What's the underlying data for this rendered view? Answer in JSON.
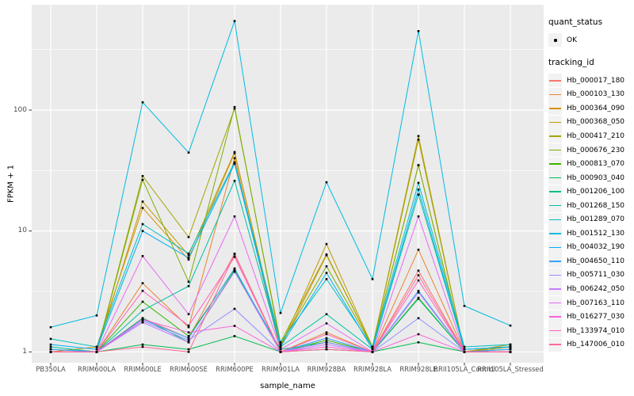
{
  "figure": {
    "x_axis_title": "sample_name",
    "y_axis_title": "FPKM + 1",
    "legend": {
      "quant_status_title": "quant_status",
      "quant_status_ok_label": "OK",
      "tracking_id_title": "tracking_id"
    },
    "colors": {
      "panel_background": "#EBEBEB",
      "grid": "#FFFFFF",
      "axis_text": "#4d4d4d",
      "tick_mark": "#333333",
      "legend_key_background": "#F2F2F2",
      "point": "#000000"
    }
  },
  "chart_data": {
    "type": "line",
    "title": "",
    "xlabel": "sample_name",
    "ylabel": "FPKM + 1",
    "y_scale": "log10",
    "ylim": [
      0.83,
      760
    ],
    "y_ticks": [
      1,
      10,
      100
    ],
    "y_minor_ticks": [
      3.162,
      31.62,
      316.2
    ],
    "grid": true,
    "legend_position": "right",
    "quant_status": "OK",
    "categories": [
      "PB350LA",
      "RRIM600LA",
      "RRIM600LE",
      "RRIM600SE",
      "RRIM600PE",
      "RRIM901LA",
      "RRIM928BA",
      "RRIM928LA",
      "RRIM928LE",
      "RRII105LA_Control",
      "RRII105LA_Stressed"
    ],
    "series": [
      {
        "name": "Hb_000017_180",
        "color": "#F8766D",
        "values": [
          1.0,
          1.0,
          1.9,
          1.3,
          6.5,
          1.0,
          1.2,
          1.0,
          4.7,
          1.0,
          1.0
        ]
      },
      {
        "name": "Hb_000103_130",
        "color": "#EA8331",
        "values": [
          1.0,
          1.0,
          3.7,
          1.6,
          40,
          1.0,
          1.45,
          1.0,
          7.0,
          1.0,
          1.1
        ]
      },
      {
        "name": "Hb_000364_090",
        "color": "#D89000",
        "values": [
          1.0,
          1.1,
          15.5,
          5.8,
          44,
          1.1,
          6.3,
          1.1,
          35,
          1.0,
          1.1
        ]
      },
      {
        "name": "Hb_000368_050",
        "color": "#C09B00",
        "values": [
          1.0,
          1.0,
          17.5,
          6.3,
          45,
          1.1,
          7.8,
          1.1,
          61,
          1.0,
          1.15
        ]
      },
      {
        "name": "Hb_000417_210",
        "color": "#A3A500",
        "values": [
          1.0,
          1.0,
          28.5,
          8.9,
          103,
          1.2,
          6.4,
          1.1,
          57,
          1.0,
          1.1
        ]
      },
      {
        "name": "Hb_000676_230",
        "color": "#7CAE00",
        "values": [
          1.0,
          1.0,
          26.5,
          3.8,
          106,
          1.15,
          5.1,
          1.1,
          35,
          1.0,
          1.05
        ]
      },
      {
        "name": "Hb_000813_070",
        "color": "#39B600",
        "values": [
          1.0,
          1.0,
          2.6,
          1.35,
          4.8,
          1.0,
          1.25,
          1.0,
          2.8,
          1.0,
          1.0
        ]
      },
      {
        "name": "Hb_000903_040",
        "color": "#00BB4E",
        "values": [
          1.0,
          1.0,
          1.15,
          1.05,
          1.35,
          1.0,
          1.05,
          1.0,
          1.2,
          1.0,
          1.0
        ]
      },
      {
        "name": "Hb_001206_100",
        "color": "#00BF7D",
        "values": [
          1.05,
          1.0,
          1.9,
          1.2,
          4.7,
          1.05,
          1.2,
          1.0,
          2.75,
          1.0,
          1.05
        ]
      },
      {
        "name": "Hb_001268_150",
        "color": "#00C1A3",
        "values": [
          1.1,
          1.0,
          2.2,
          3.5,
          26,
          1.1,
          2.05,
          1.05,
          20,
          1.05,
          1.1
        ]
      },
      {
        "name": "Hb_001289_070",
        "color": "#00BFC4",
        "values": [
          1.28,
          1.1,
          11.4,
          6.5,
          37,
          1.2,
          4.0,
          1.1,
          25,
          1.1,
          1.15
        ]
      },
      {
        "name": "Hb_001512_130",
        "color": "#00BAE0",
        "values": [
          1.6,
          2.0,
          116,
          44.5,
          545,
          2.1,
          25.3,
          4.0,
          450,
          2.4,
          1.65
        ]
      },
      {
        "name": "Hb_004032_190",
        "color": "#00B0F6",
        "values": [
          1.15,
          1.05,
          10,
          6.0,
          36,
          1.1,
          4.5,
          1.05,
          22,
          1.05,
          1.1
        ]
      },
      {
        "name": "Hb_004650_110",
        "color": "#35A2FF",
        "values": [
          1.05,
          1.0,
          1.85,
          1.3,
          4.9,
          1.0,
          1.3,
          1.0,
          3.2,
          1.0,
          1.05
        ]
      },
      {
        "name": "Hb_005711_030",
        "color": "#9590FF",
        "values": [
          1.0,
          1.0,
          1.8,
          1.25,
          2.27,
          1.0,
          1.2,
          1.0,
          1.9,
          1.0,
          1.0
        ]
      },
      {
        "name": "Hb_006242_050",
        "color": "#C77CFF",
        "values": [
          1.0,
          1.0,
          1.75,
          1.2,
          4.6,
          1.0,
          1.15,
          1.0,
          3.1,
          1.0,
          1.0
        ]
      },
      {
        "name": "Hb_007163_110",
        "color": "#E76BF3",
        "values": [
          1.0,
          1.0,
          6.2,
          2.05,
          13.2,
          1.05,
          1.72,
          1.0,
          13.2,
          1.0,
          1.0
        ]
      },
      {
        "name": "Hb_016277_030",
        "color": "#FA62DB",
        "values": [
          1.0,
          1.0,
          1.85,
          1.45,
          1.64,
          1.0,
          1.1,
          1.0,
          1.4,
          1.0,
          1.0
        ]
      },
      {
        "name": "Hb_133974_010",
        "color": "#FF62BC",
        "values": [
          1.0,
          1.0,
          3.2,
          1.65,
          6.1,
          1.0,
          1.4,
          1.0,
          3.9,
          1.0,
          1.0
        ]
      },
      {
        "name": "Hb_147006_010",
        "color": "#FF6A98",
        "values": [
          1.0,
          1.0,
          1.1,
          1.0,
          6.4,
          1.0,
          1.05,
          1.0,
          4.3,
          1.0,
          1.0
        ]
      }
    ]
  }
}
